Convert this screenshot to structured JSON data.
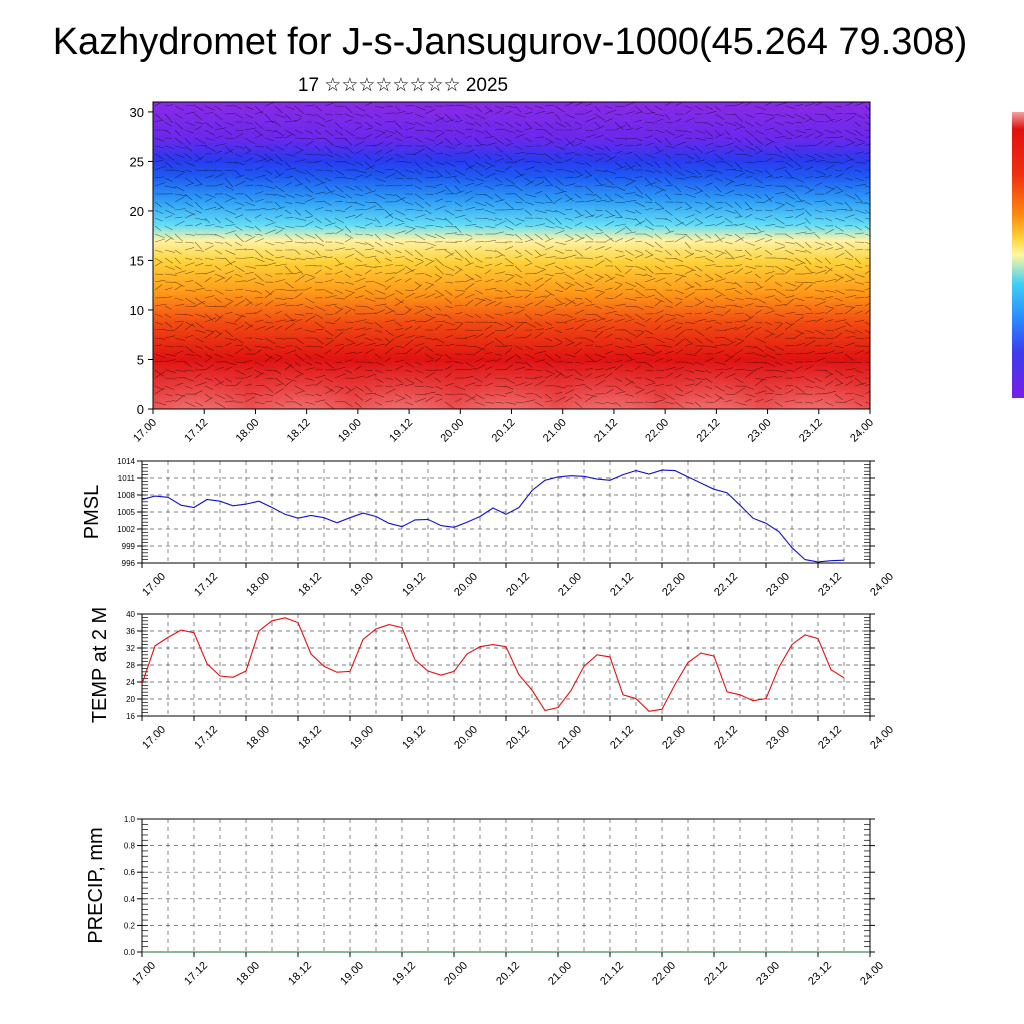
{
  "title": "Kazhydromet for J-s-Jansugurov-1000(45.264 79.308)",
  "subtitle": "17 ☆☆☆☆☆☆☆☆ 2025",
  "colors": {
    "pmsl_line": "#1010d0",
    "temp_line": "#e01010",
    "precip_line": "#1a6b3a"
  },
  "chart_data": [
    {
      "type": "heatmap",
      "name": "vertical-profile",
      "x_tick_labels": [
        "17.00",
        "17.12",
        "18.00",
        "18.12",
        "19.00",
        "19.12",
        "20.00",
        "20.12",
        "21.00",
        "21.12",
        "22.00",
        "22.12",
        "23.00",
        "23.12",
        "24.00"
      ],
      "y_ticks": [
        0,
        5,
        10,
        15,
        20,
        25,
        30
      ],
      "ylim": [
        0,
        31
      ],
      "xlim": [
        0,
        14
      ],
      "colorbar": [
        "#7a1ee6",
        "#3c3cf0",
        "#2a8cff",
        "#3fd0f5",
        "#fff8a0",
        "#ffd23a",
        "#ff8a10",
        "#f02a10",
        "#e01010",
        "#f3a3a3"
      ]
    },
    {
      "type": "line",
      "name": "pmsl",
      "ylabel": "PMSL",
      "y_ticks": [
        996,
        999,
        1002,
        1005,
        1008,
        1011,
        1014
      ],
      "ylim": [
        996,
        1014
      ],
      "xlim": [
        0,
        14
      ],
      "x_tick_labels": [
        "17.00",
        "17.12",
        "18.00",
        "18.12",
        "19.00",
        "19.12",
        "20.00",
        "20.12",
        "21.00",
        "21.12",
        "22.00",
        "22.12",
        "23.00",
        "23.12",
        "24.00"
      ],
      "series": [
        {
          "x": [
            0,
            0.25,
            0.5,
            0.75,
            1,
            1.25,
            1.5,
            1.75,
            2,
            2.25,
            2.5,
            2.75,
            3,
            3.25,
            3.5,
            3.75,
            4,
            4.25,
            4.5,
            4.75,
            5,
            5.25,
            5.5,
            5.75,
            6,
            6.25,
            6.5,
            6.75,
            7,
            7.25,
            7.5,
            7.75,
            8,
            8.25,
            8.5,
            8.75,
            9,
            9.25,
            9.5,
            9.75,
            10,
            10.25,
            10.5,
            10.75,
            11,
            11.25,
            11.5,
            11.75,
            12,
            12.25,
            12.5,
            12.75,
            13,
            13.25,
            13.5
          ],
          "values": [
            1007.2,
            1007.8,
            1007.6,
            1006.2,
            1005.8,
            1007.2,
            1006.9,
            1006.1,
            1006.4,
            1006.9,
            1005.8,
            1004.6,
            1003.9,
            1004.4,
            1004.0,
            1003.1,
            1004.0,
            1004.8,
            1004.2,
            1003.0,
            1002.4,
            1003.6,
            1003.7,
            1002.6,
            1002.3,
            1003.2,
            1004.2,
            1005.7,
            1004.6,
            1005.8,
            1008.8,
            1010.6,
            1011.2,
            1011.4,
            1011.3,
            1010.8,
            1010.6,
            1011.6,
            1012.3,
            1011.7,
            1012.4,
            1012.3,
            1011.2,
            1010.1,
            1009.0,
            1008.4,
            1006.2,
            1003.9,
            1003.0,
            1001.5,
            998.7,
            996.6,
            996.2,
            996.4,
            996.5
          ]
        }
      ]
    },
    {
      "type": "line",
      "name": "temp",
      "ylabel": "TEMP at 2 M",
      "y_ticks": [
        16,
        20,
        24,
        28,
        32,
        36,
        40
      ],
      "ylim": [
        16,
        40
      ],
      "xlim": [
        0,
        14
      ],
      "x_tick_labels": [
        "17.00",
        "17.12",
        "18.00",
        "18.12",
        "19.00",
        "19.12",
        "20.00",
        "20.12",
        "21.00",
        "21.12",
        "22.00",
        "22.12",
        "23.00",
        "23.12",
        "24.00"
      ],
      "series": [
        {
          "x": [
            0,
            0.25,
            0.5,
            0.75,
            1,
            1.25,
            1.5,
            1.75,
            2,
            2.25,
            2.5,
            2.75,
            3,
            3.25,
            3.5,
            3.75,
            4,
            4.25,
            4.5,
            4.75,
            5,
            5.25,
            5.5,
            5.75,
            6,
            6.25,
            6.5,
            6.75,
            7,
            7.25,
            7.5,
            7.75,
            8,
            8.25,
            8.5,
            8.75,
            9,
            9.25,
            9.5,
            9.75,
            10,
            10.25,
            10.5,
            10.75,
            11,
            11.25,
            11.5,
            11.75,
            12,
            12.25,
            12.5,
            12.75,
            13,
            13.25,
            13.5
          ],
          "values": [
            23.5,
            32.5,
            34.5,
            36.2,
            35.6,
            28.3,
            25.4,
            25.1,
            26.6,
            36.0,
            38.4,
            39.1,
            38.0,
            30.6,
            27.7,
            26.3,
            26.5,
            34.0,
            36.5,
            37.5,
            36.8,
            29.2,
            26.6,
            25.6,
            26.5,
            30.6,
            32.3,
            32.8,
            32.3,
            25.7,
            22.1,
            17.3,
            18.0,
            22.0,
            27.7,
            30.4,
            29.9,
            21.0,
            20.1,
            17.1,
            17.6,
            23.4,
            28.6,
            30.8,
            30.1,
            21.7,
            21.0,
            19.6,
            20.1,
            27.5,
            32.8,
            35.1,
            34.2,
            26.9,
            25.0
          ]
        }
      ]
    },
    {
      "type": "line",
      "name": "precip",
      "ylabel": "PRECIP, mm",
      "y_ticks": [
        0.0,
        0.2,
        0.4,
        0.6,
        0.8,
        1.0
      ],
      "y_tick_labels": [
        "0.0",
        "0.2",
        "0.4",
        "0.6",
        "0.8",
        "1.0"
      ],
      "ylim": [
        0,
        1
      ],
      "xlim": [
        0,
        14
      ],
      "x_tick_labels": [
        "17.00",
        "17.12",
        "18.00",
        "18.12",
        "19.00",
        "19.12",
        "20.00",
        "20.12",
        "21.00",
        "21.12",
        "22.00",
        "22.12",
        "23.00",
        "23.12",
        "24.00"
      ],
      "series": [
        {
          "x": [
            0,
            14
          ],
          "values": [
            0,
            0
          ]
        }
      ]
    }
  ]
}
